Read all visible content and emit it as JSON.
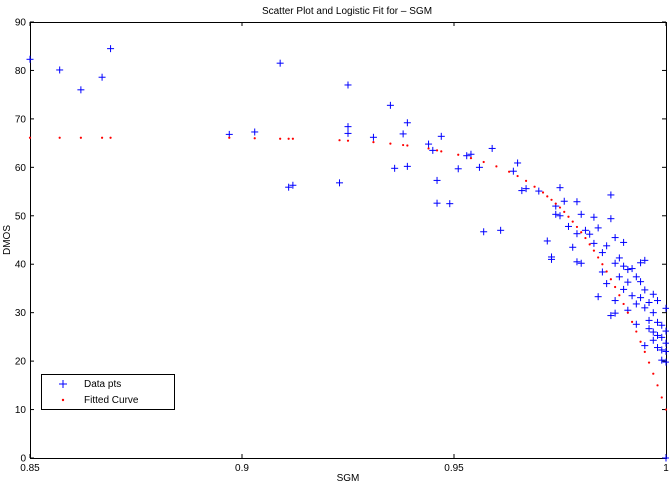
{
  "chart_data": {
    "type": "scatter",
    "title": "Scatter Plot and Logistic Fit for – SGM",
    "xlabel": "SGM",
    "ylabel": "DMOS",
    "xlim": [
      0.85,
      1
    ],
    "ylim": [
      0,
      90
    ],
    "xticks": [
      0.85,
      0.9,
      0.95,
      1
    ],
    "xtick_labels": [
      "0.85",
      "0.9",
      "0.95",
      "1"
    ],
    "yticks": [
      0,
      10,
      20,
      30,
      40,
      50,
      60,
      70,
      80,
      90
    ],
    "grid": false,
    "legend_position": "bottom-left",
    "series": [
      {
        "name": "Data pts",
        "marker": "plus",
        "color": "#0000ff",
        "points": [
          [
            0.85,
            82.3
          ],
          [
            0.857,
            80.1
          ],
          [
            0.862,
            76.0
          ],
          [
            0.867,
            78.6
          ],
          [
            0.869,
            84.5
          ],
          [
            0.897,
            66.8
          ],
          [
            0.903,
            67.3
          ],
          [
            0.909,
            81.5
          ],
          [
            0.911,
            55.9
          ],
          [
            0.912,
            56.3
          ],
          [
            0.923,
            56.8
          ],
          [
            0.925,
            68.4
          ],
          [
            0.925,
            77.0
          ],
          [
            0.925,
            67.0
          ],
          [
            0.931,
            66.2
          ],
          [
            0.935,
            72.8
          ],
          [
            0.936,
            59.8
          ],
          [
            0.938,
            66.9
          ],
          [
            0.939,
            60.2
          ],
          [
            0.939,
            69.2
          ],
          [
            0.944,
            64.8
          ],
          [
            0.945,
            63.5
          ],
          [
            0.946,
            57.3
          ],
          [
            0.946,
            52.6
          ],
          [
            0.947,
            66.4
          ],
          [
            0.949,
            52.5
          ],
          [
            0.951,
            59.7
          ],
          [
            0.953,
            62.4
          ],
          [
            0.954,
            62.7
          ],
          [
            0.956,
            60.0
          ],
          [
            0.957,
            46.7
          ],
          [
            0.959,
            63.9
          ],
          [
            0.961,
            47.0
          ],
          [
            0.964,
            59.2
          ],
          [
            0.965,
            60.9
          ],
          [
            0.966,
            55.2
          ],
          [
            0.967,
            55.6
          ],
          [
            0.97,
            55.1
          ],
          [
            0.972,
            44.8
          ],
          [
            0.973,
            41.5
          ],
          [
            0.973,
            41.0
          ],
          [
            0.974,
            52.0
          ],
          [
            0.974,
            50.3
          ],
          [
            0.975,
            55.8
          ],
          [
            0.975,
            50.0
          ],
          [
            0.976,
            53.0
          ],
          [
            0.977,
            47.8
          ],
          [
            0.978,
            43.5
          ],
          [
            0.979,
            46.3
          ],
          [
            0.979,
            40.5
          ],
          [
            0.979,
            52.9
          ],
          [
            0.98,
            50.3
          ],
          [
            0.98,
            40.2
          ],
          [
            0.981,
            47.0
          ],
          [
            0.982,
            46.2
          ],
          [
            0.983,
            49.7
          ],
          [
            0.983,
            44.3
          ],
          [
            0.984,
            33.3
          ],
          [
            0.984,
            47.5
          ],
          [
            0.985,
            42.4
          ],
          [
            0.985,
            38.4
          ],
          [
            0.986,
            43.8
          ],
          [
            0.986,
            36.0
          ],
          [
            0.987,
            54.3
          ],
          [
            0.987,
            49.4
          ],
          [
            0.987,
            29.4
          ],
          [
            0.988,
            45.5
          ],
          [
            0.988,
            40.2
          ],
          [
            0.988,
            32.5
          ],
          [
            0.988,
            29.9
          ],
          [
            0.989,
            41.3
          ],
          [
            0.989,
            37.4
          ],
          [
            0.99,
            39.6
          ],
          [
            0.99,
            34.8
          ],
          [
            0.99,
            44.5
          ],
          [
            0.991,
            38.9
          ],
          [
            0.991,
            36.3
          ],
          [
            0.991,
            30.5
          ],
          [
            0.992,
            39.1
          ],
          [
            0.992,
            33.5
          ],
          [
            0.993,
            37.4
          ],
          [
            0.993,
            31.8
          ],
          [
            0.993,
            27.6
          ],
          [
            0.994,
            36.4
          ],
          [
            0.994,
            33.1
          ],
          [
            0.994,
            40.3
          ],
          [
            0.995,
            40.8
          ],
          [
            0.995,
            34.7
          ],
          [
            0.995,
            31.0
          ],
          [
            0.995,
            23.2
          ],
          [
            0.996,
            32.1
          ],
          [
            0.996,
            28.4
          ],
          [
            0.996,
            26.7
          ],
          [
            0.997,
            33.8
          ],
          [
            0.997,
            30.0
          ],
          [
            0.997,
            26.0
          ],
          [
            0.997,
            24.3
          ],
          [
            0.998,
            32.5
          ],
          [
            0.998,
            28.0
          ],
          [
            0.998,
            25.3
          ],
          [
            0.998,
            22.8
          ],
          [
            0.999,
            27.4
          ],
          [
            0.999,
            24.9
          ],
          [
            0.999,
            22.3
          ],
          [
            0.999,
            20.2
          ],
          [
            1.0,
            30.9
          ],
          [
            1.0,
            26.2
          ],
          [
            1.0,
            23.7
          ],
          [
            1.0,
            19.8
          ],
          [
            1.0,
            22.0
          ],
          [
            1.0,
            0.0
          ]
        ]
      },
      {
        "name": "Fitted Curve",
        "marker": "dot",
        "color": "#ff0000",
        "points": [
          [
            0.85,
            66.1
          ],
          [
            0.857,
            66.1
          ],
          [
            0.862,
            66.1
          ],
          [
            0.867,
            66.1
          ],
          [
            0.869,
            66.1
          ],
          [
            0.897,
            66.1
          ],
          [
            0.903,
            66.0
          ],
          [
            0.909,
            65.9
          ],
          [
            0.911,
            65.9
          ],
          [
            0.912,
            65.9
          ],
          [
            0.923,
            65.6
          ],
          [
            0.925,
            65.5
          ],
          [
            0.931,
            65.2
          ],
          [
            0.935,
            64.9
          ],
          [
            0.938,
            64.6
          ],
          [
            0.939,
            64.5
          ],
          [
            0.944,
            63.9
          ],
          [
            0.946,
            63.5
          ],
          [
            0.947,
            63.3
          ],
          [
            0.951,
            62.6
          ],
          [
            0.954,
            61.9
          ],
          [
            0.957,
            61.1
          ],
          [
            0.96,
            60.2
          ],
          [
            0.963,
            59.1
          ],
          [
            0.965,
            58.2
          ],
          [
            0.967,
            57.2
          ],
          [
            0.969,
            56.0
          ],
          [
            0.971,
            54.8
          ],
          [
            0.972,
            54.0
          ],
          [
            0.973,
            53.3
          ],
          [
            0.974,
            52.5
          ],
          [
            0.975,
            51.7
          ],
          [
            0.976,
            50.8
          ],
          [
            0.977,
            49.8
          ],
          [
            0.978,
            48.8
          ],
          [
            0.979,
            47.7
          ],
          [
            0.98,
            46.6
          ],
          [
            0.981,
            45.4
          ],
          [
            0.982,
            44.1
          ],
          [
            0.983,
            42.8
          ],
          [
            0.984,
            41.4
          ],
          [
            0.985,
            40.0
          ],
          [
            0.986,
            38.5
          ],
          [
            0.987,
            36.9
          ],
          [
            0.988,
            35.3
          ],
          [
            0.989,
            33.6
          ],
          [
            0.99,
            31.8
          ],
          [
            0.991,
            30.0
          ],
          [
            0.992,
            28.1
          ],
          [
            0.993,
            26.1
          ],
          [
            0.994,
            24.0
          ],
          [
            0.995,
            21.9
          ],
          [
            0.996,
            19.7
          ],
          [
            0.997,
            17.4
          ],
          [
            0.998,
            15.0
          ],
          [
            0.999,
            12.5
          ],
          [
            1.0,
            10.0
          ]
        ]
      }
    ]
  }
}
